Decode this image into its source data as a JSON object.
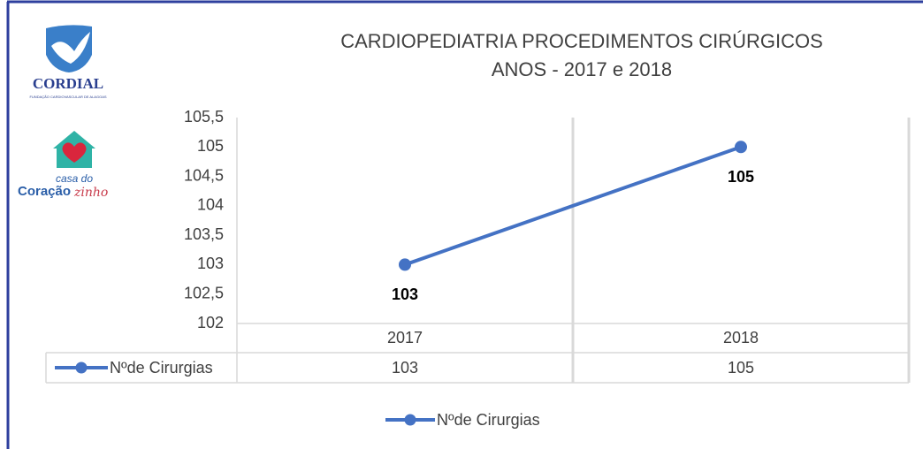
{
  "logos": {
    "cordial": "CORDIAL",
    "cordial_tagline": "FUNDAÇÃO CARDIOVASCULAR DE ALAGOAS",
    "casa": "casa do",
    "coracao": "Coração",
    "zinho": "zinho"
  },
  "chart_data": {
    "type": "line",
    "title": "CARDIOPEDIATRIA PROCEDIMENTOS CIRÚRGICOS",
    "subtitle": "ANOS - 2017 e 2018",
    "categories": [
      "2017",
      "2018"
    ],
    "series": [
      {
        "name": "Nºde Cirurgias",
        "color": "#4472c4",
        "values": [
          103,
          105
        ]
      }
    ],
    "ylim": [
      102,
      105.5
    ],
    "yticks": [
      102,
      {
        "value": 102.5,
        "label": "102,5"
      },
      103,
      {
        "value": 103.5,
        "label": "103,5"
      },
      104,
      {
        "value": 104.5,
        "label": "104,5"
      },
      105,
      {
        "value": 105.5,
        "label": "105,5"
      }
    ],
    "data_table": true,
    "legend": "bottom"
  }
}
